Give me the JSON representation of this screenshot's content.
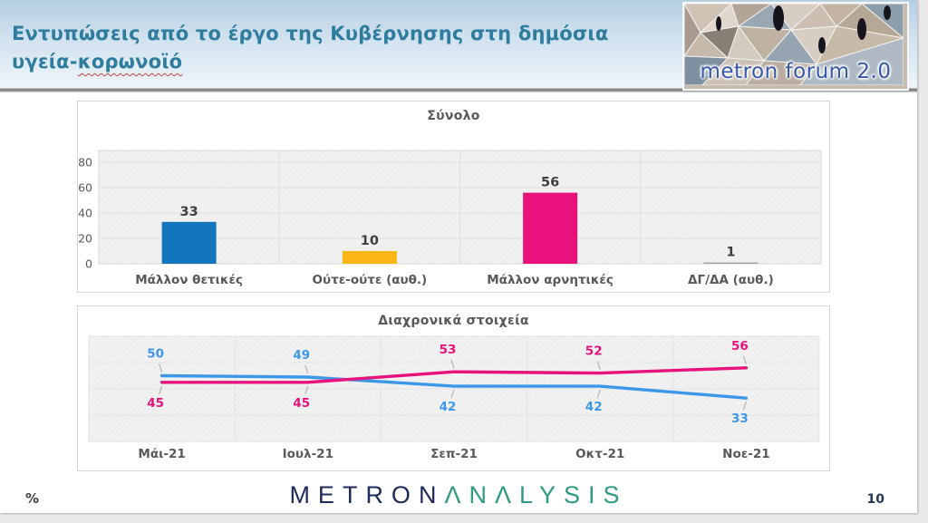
{
  "slide": {
    "title_line1": "Εντυπώσεις από το έργο της Κυβέρνησης στη δημόσια",
    "title_line2_plain": "υγεία-",
    "title_line2_underlined": "κορωνοϊό",
    "header_logo_text": "metron forum 2.0",
    "percent_symbol": "%",
    "page_number": "10",
    "footer_logo_part1": "METRON",
    "footer_logo_part2": "ΛNΛLYSIS"
  },
  "colors": {
    "title_teal": "#2e7c9e",
    "bar_blue": "#1176bc",
    "bar_yellow": "#fbb616",
    "bar_pink": "#e9127c",
    "bar_gray": "#9e9e9e",
    "line_blue": "#3d97e8",
    "line_pink": "#e8127c",
    "axis_gray": "#595959",
    "footer_navy": "#1f2a5b",
    "footer_teal": "#2e9b82"
  },
  "chart_data": [
    {
      "type": "bar",
      "title": "Σύνολο",
      "categories": [
        "Μάλλον θετικές",
        "Ούτε-ούτε (αυθ.)",
        "Μάλλον αρνητικές",
        "ΔΓ/ΔΑ (αυθ.)"
      ],
      "values": [
        33,
        10,
        56,
        1
      ],
      "bar_colors": [
        "#1176bc",
        "#fbb616",
        "#e9127c",
        "#9e9e9e"
      ],
      "xlabel": "",
      "ylabel": "",
      "ylim": [
        0,
        89
      ],
      "yticks": [
        0,
        20,
        40,
        60,
        80
      ],
      "grid": true,
      "legend": "none"
    },
    {
      "type": "line",
      "title": "Διαχρονικά στοιχεία",
      "x": [
        "Μάι-21",
        "Ιουλ-21",
        "Σεπ-21",
        "Οκτ-21",
        "Νοε-21"
      ],
      "series": [
        {
          "name": "Μάλλον θετικές",
          "color": "#3d97e8",
          "values": [
            50,
            49,
            42,
            42,
            33
          ]
        },
        {
          "name": "Μάλλον αρνητικές",
          "color": "#e8127c",
          "values": [
            45,
            45,
            53,
            52,
            56
          ]
        }
      ],
      "xlabel": "",
      "ylabel": "",
      "ylim": [
        0,
        80
      ],
      "grid": true,
      "legend": "none",
      "data_labels": true
    }
  ]
}
